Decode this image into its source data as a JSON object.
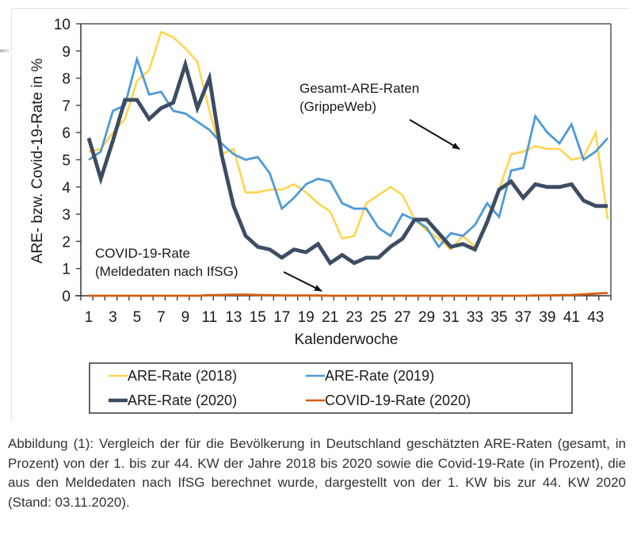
{
  "caption": "Abbildung (1): Vergleich der für die Bevölkerung in Deutschland geschätzten ARE-Raten (gesamt, in Prozent) von der 1. bis zur 44. KW der Jahre 2018 bis 2020 sowie die Covid-19-Rate (in Prozent), die aus den Meldedaten nach IfSG berechnet wurde, dargestellt von der 1. KW bis zur 44. KW 2020 (Stand: 03.11.2020).",
  "chart_data": {
    "type": "line",
    "title": "",
    "xlabel": "Kalenderwoche",
    "ylabel": "ARE- bzw. Covid-19-Rate in %",
    "xlim": [
      1,
      44
    ],
    "ylim": [
      0,
      10
    ],
    "grid": false,
    "legend_position": "bottom",
    "x": [
      1,
      2,
      3,
      4,
      5,
      6,
      7,
      8,
      9,
      10,
      11,
      12,
      13,
      14,
      15,
      16,
      17,
      18,
      19,
      20,
      21,
      22,
      23,
      24,
      25,
      26,
      27,
      28,
      29,
      30,
      31,
      32,
      33,
      34,
      35,
      36,
      37,
      38,
      39,
      40,
      41,
      42,
      43,
      44
    ],
    "x_tick_labels": [
      "1",
      "3",
      "5",
      "7",
      "9",
      "11",
      "13",
      "15",
      "17",
      "19",
      "21",
      "23",
      "25",
      "27",
      "29",
      "31",
      "33",
      "35",
      "37",
      "39",
      "41",
      "43"
    ],
    "y_tick_labels": [
      "0",
      "1",
      "2",
      "3",
      "4",
      "5",
      "6",
      "7",
      "8",
      "9",
      "10"
    ],
    "series": [
      {
        "name": "ARE-Rate (2018)",
        "color": "#ffd54f",
        "values": [
          5.3,
          5.4,
          6.0,
          6.5,
          7.9,
          8.3,
          9.7,
          9.5,
          9.1,
          8.6,
          6.8,
          5.2,
          5.4,
          3.8,
          3.8,
          3.9,
          3.9,
          4.1,
          3.8,
          3.4,
          3.1,
          2.1,
          2.2,
          3.4,
          3.7,
          4.0,
          3.7,
          2.8,
          2.4,
          2.1,
          1.7,
          2.2,
          1.8,
          2.6,
          3.9,
          5.2,
          5.3,
          5.5,
          5.4,
          5.4,
          5.0,
          5.1,
          6.0,
          2.8
        ]
      },
      {
        "name": "ARE-Rate (2019)",
        "color": "#4e9ad8",
        "values": [
          5.0,
          5.3,
          6.8,
          7.0,
          8.7,
          7.4,
          7.5,
          6.8,
          6.7,
          6.4,
          6.1,
          5.6,
          5.2,
          5.0,
          5.1,
          4.5,
          3.2,
          3.6,
          4.1,
          4.3,
          4.2,
          3.4,
          3.2,
          3.2,
          2.5,
          2.2,
          3.0,
          2.8,
          2.5,
          1.8,
          2.3,
          2.2,
          2.6,
          3.4,
          2.9,
          4.6,
          4.7,
          6.6,
          6.0,
          5.6,
          6.3,
          5.0,
          5.3,
          5.8
        ]
      },
      {
        "name": "ARE-Rate (2020)",
        "color": "#3d4c63",
        "values": [
          5.8,
          4.3,
          5.7,
          7.2,
          7.2,
          6.5,
          6.9,
          7.1,
          8.5,
          6.9,
          8.0,
          5.2,
          3.3,
          2.2,
          1.8,
          1.7,
          1.4,
          1.7,
          1.6,
          1.9,
          1.2,
          1.5,
          1.2,
          1.4,
          1.4,
          1.8,
          2.1,
          2.8,
          2.8,
          2.3,
          1.8,
          1.9,
          1.7,
          2.7,
          3.9,
          4.2,
          3.6,
          4.1,
          4.0,
          4.0,
          4.1,
          3.5,
          3.3,
          3.3
        ]
      },
      {
        "name": "COVID-19-Rate (2020)",
        "color": "#d35f12",
        "values": [
          0,
          0,
          0,
          0,
          0,
          0,
          0,
          0,
          0,
          0,
          0.02,
          0.03,
          0.04,
          0.04,
          0.03,
          0.02,
          0.01,
          0.01,
          0.01,
          0.01,
          0,
          0,
          0,
          0,
          0,
          0,
          0,
          0,
          0,
          0,
          0,
          0,
          0,
          0,
          0,
          0,
          0,
          0.01,
          0.01,
          0.02,
          0.03,
          0.05,
          0.08,
          0.1
        ]
      }
    ],
    "annotations": [
      {
        "lines": [
          "Gesamt-ARE-Raten",
          "(GrippeWeb)"
        ],
        "points_to": "ARE-Rate series"
      },
      {
        "lines": [
          "COVID-19-Rate",
          "(Meldedaten nach IfSG)"
        ],
        "points_to": "COVID-19-Rate (2020)"
      }
    ]
  }
}
